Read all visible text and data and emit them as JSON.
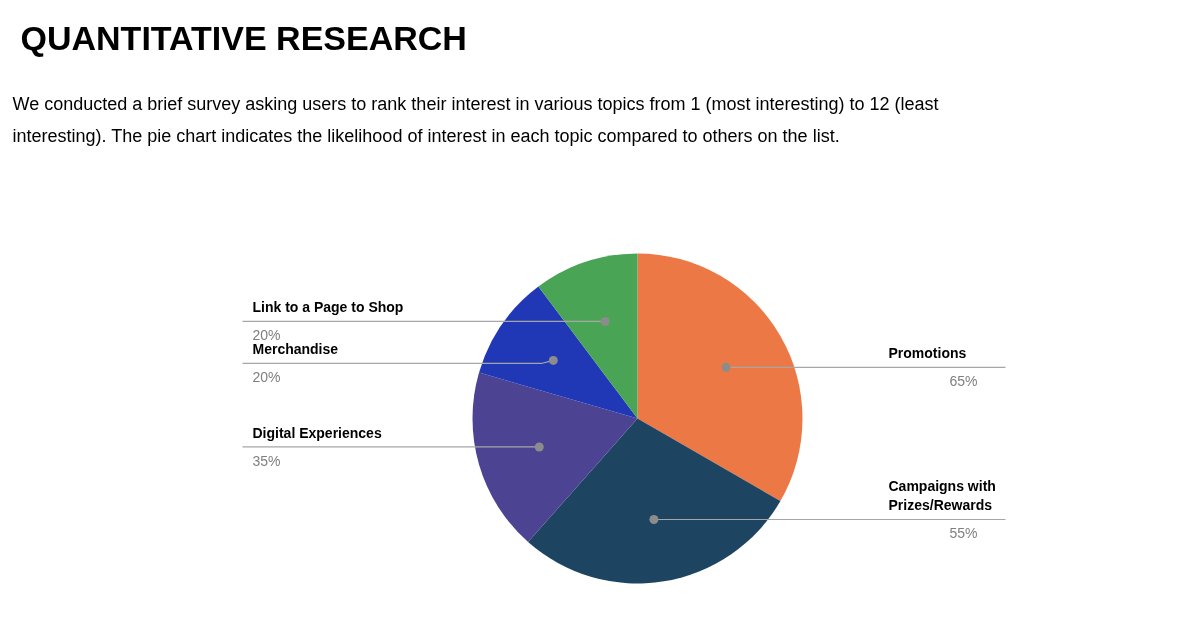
{
  "chart_data": {
    "type": "pie",
    "title": "QUANTITATIVE RESEARCH",
    "subtitle": "We conducted a brief survey asking users to rank their interest in various topics from 1 (most interesting) to 12 (least interesting). The pie chart  indicates the likelihood of interest in each topic compared to others on the list.",
    "categories": [
      "Promotions",
      "Campaigns with Prizes/Rewards",
      "Digital Experiences",
      "Merchandise",
      "Link to a Page to Shop"
    ],
    "values": [
      65,
      55,
      35,
      20,
      20
    ],
    "colors": [
      "#ec7945",
      "#1d4461",
      "#4c4393",
      "#2138b6",
      "#4aa455"
    ],
    "value_labels": [
      "65%",
      "55%",
      "35%",
      "20%",
      "20%"
    ]
  }
}
